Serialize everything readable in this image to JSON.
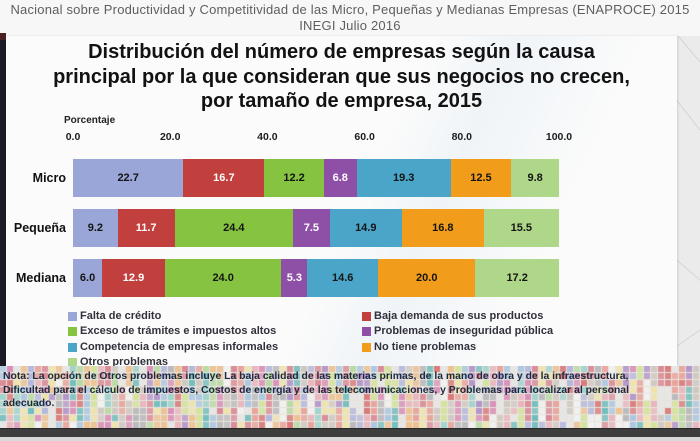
{
  "slide": {
    "header_lines": [
      "Nacional sobre Productividad y Competitividad de las Micro, Pequeñas y Medianas Empresas (ENAPROCE) 2015",
      "INEGI Julio 2016"
    ]
  },
  "title_lines": [
    "Distribución del número de empresas según la causa",
    "principal por la que consideran que sus negocios no crecen,",
    "por tamaño de empresa, 2015"
  ],
  "chart_data": {
    "type": "bar",
    "stacked": true,
    "orientation": "horizontal",
    "title": "Distribución del número de empresas según la causa principal por la que consideran que sus negocios no crecen, por tamaño de empresa, 2015",
    "xlabel": "Porcentaje",
    "xlim": [
      0,
      100
    ],
    "tick_labels": [
      "0.0",
      "20.0",
      "40.0",
      "60.0",
      "80.0",
      "100.0"
    ],
    "grid": false,
    "legend_position": "bottom",
    "categories": [
      "Micro",
      "Pequeña",
      "Mediana"
    ],
    "series": [
      {
        "name": "Falta de crédito",
        "color": "#9aa6d8",
        "label_color": "#141414",
        "values": [
          22.7,
          9.2,
          6.0
        ]
      },
      {
        "name": "Baja demanda de sus productos",
        "color": "#c13f3d",
        "label_color": "#ffffff",
        "values": [
          16.7,
          11.7,
          12.9
        ]
      },
      {
        "name": "Exceso de trámites e impuestos altos",
        "color": "#85c341",
        "label_color": "#141414",
        "values": [
          12.2,
          24.4,
          24.0
        ]
      },
      {
        "name": "Problemas de inseguridad pública",
        "color": "#8e4fa6",
        "label_color": "#ffffff",
        "values": [
          6.8,
          7.5,
          5.3
        ]
      },
      {
        "name": "Competencia de empresas informales",
        "color": "#4aa5c8",
        "label_color": "#141414",
        "values": [
          19.3,
          14.9,
          14.6
        ]
      },
      {
        "name": "No tiene problemas",
        "color": "#f19d1b",
        "label_color": "#141414",
        "values": [
          12.5,
          16.8,
          20.0
        ]
      },
      {
        "name": "Otros problemas",
        "color": "#aed789",
        "label_color": "#141414",
        "values": [
          9.8,
          15.5,
          17.2
        ]
      }
    ],
    "legend_columns": {
      "left": [
        0,
        2,
        4,
        6
      ],
      "right": [
        1,
        3,
        5
      ]
    }
  },
  "note_lines": [
    "Nota: La opción de Otros problemas incluye La baja calidad de las materias primas, de la mano de obra y de la infraestructura,",
    "Dificultad para el cálculo de impuestos, Costos de energía y de las telecomunicaciones, y Problemas para localizar al personal",
    "adecuado."
  ],
  "decor": {
    "mosaic_palette": [
      "#e9b4bc",
      "#d98a96",
      "#e8a39a",
      "#efe3a8",
      "#d3e39a",
      "#b5d9a0",
      "#9fd3cd",
      "#6fbdbd",
      "#aac7e2",
      "#b3b7dd",
      "#b193c9",
      "#d990b8",
      "#b9b9bd",
      "#cfc8c2",
      "#f2f2f2",
      "#d97b7b",
      "#eec08e",
      "#e6e6e6"
    ],
    "page_bg": "#ebebeb",
    "panel_bg": "#fbfbfb",
    "edge_strip_color": "#1b1b25",
    "bottom_bar_color": "#3d3d3d",
    "deco_line_color": "#d4d4d4"
  }
}
